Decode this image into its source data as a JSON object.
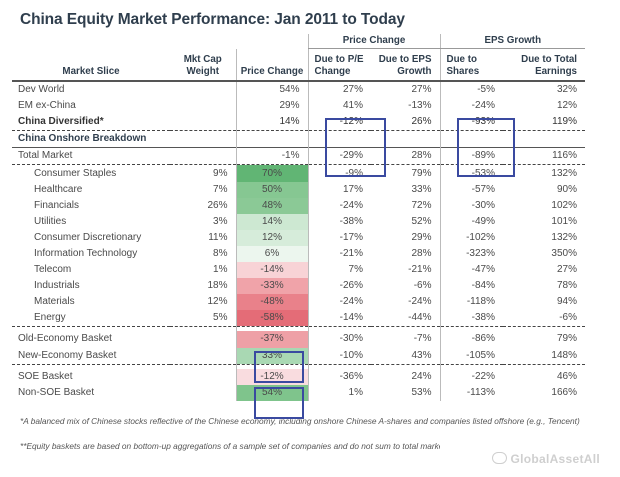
{
  "title": "China Equity Market Performance: Jan 2011 to Today",
  "groups": {
    "price_change": "Price Change",
    "eps_growth": "EPS Growth"
  },
  "columns": {
    "slice": "Market Slice",
    "mktcap": "Mkt Cap\nWeight",
    "price": "Price Change",
    "pe": "Due to P/E\nChange",
    "eps": "Due to EPS\nGrowth",
    "shares": "Due to\nShares",
    "earnings": "Due to Total\nEarnings"
  },
  "rows_top": [
    {
      "name": "Dev World",
      "mktcap": "",
      "price": "54%",
      "pe": "27%",
      "eps": "27%",
      "shares": "-5%",
      "earnings": "32%"
    },
    {
      "name": "EM ex-China",
      "mktcap": "",
      "price": "29%",
      "pe": "41%",
      "eps": "-13%",
      "shares": "-24%",
      "earnings": "12%"
    },
    {
      "name": "China Diversified*",
      "mktcap": "",
      "price": "14%",
      "pe": "-12%",
      "eps": "26%",
      "shares": "-93%",
      "earnings": "119%"
    }
  ],
  "section_label": "China Onshore Breakdown",
  "total_row": {
    "name": "Total Market",
    "mktcap": "",
    "price": "-1%",
    "pe": "-29%",
    "eps": "28%",
    "shares": "-89%",
    "earnings": "116%"
  },
  "sectors": [
    {
      "name": "Consumer Staples",
      "mktcap": "9%",
      "price": "70%",
      "pe": "-9%",
      "eps": "79%",
      "shares": "-53%",
      "earnings": "132%",
      "fill": "#61b574"
    },
    {
      "name": "Healthcare",
      "mktcap": "7%",
      "price": "50%",
      "pe": "17%",
      "eps": "33%",
      "shares": "-57%",
      "earnings": "90%",
      "fill": "#86c792"
    },
    {
      "name": "Financials",
      "mktcap": "26%",
      "price": "48%",
      "pe": "-24%",
      "eps": "72%",
      "shares": "-30%",
      "earnings": "102%",
      "fill": "#8bc996"
    },
    {
      "name": "Utilities",
      "mktcap": "3%",
      "price": "14%",
      "pe": "-38%",
      "eps": "52%",
      "shares": "-49%",
      "earnings": "101%",
      "fill": "#cde8d2"
    },
    {
      "name": "Consumer Discretionary",
      "mktcap": "11%",
      "price": "12%",
      "pe": "-17%",
      "eps": "29%",
      "shares": "-102%",
      "earnings": "132%",
      "fill": "#d6ecda"
    },
    {
      "name": "Information Technology",
      "mktcap": "8%",
      "price": "6%",
      "pe": "-21%",
      "eps": "28%",
      "shares": "-323%",
      "earnings": "350%",
      "fill": "#ecf6ee"
    },
    {
      "name": "Telecom",
      "mktcap": "1%",
      "price": "-14%",
      "pe": "7%",
      "eps": "-21%",
      "shares": "-47%",
      "earnings": "27%",
      "fill": "#f8d3d6"
    },
    {
      "name": "Industrials",
      "mktcap": "18%",
      "price": "-33%",
      "pe": "-26%",
      "eps": "-6%",
      "shares": "-84%",
      "earnings": "78%",
      "fill": "#f0a3a9"
    },
    {
      "name": "Materials",
      "mktcap": "12%",
      "price": "-48%",
      "pe": "-24%",
      "eps": "-24%",
      "shares": "-118%",
      "earnings": "94%",
      "fill": "#e9818a"
    },
    {
      "name": "Energy",
      "mktcap": "5%",
      "price": "-58%",
      "pe": "-14%",
      "eps": "-44%",
      "shares": "-38%",
      "earnings": "-6%",
      "fill": "#e46c77"
    }
  ],
  "baskets1": [
    {
      "name": "Old-Economy Basket",
      "price": "-37%",
      "pe": "-30%",
      "eps": "-7%",
      "shares": "-86%",
      "earnings": "79%",
      "fill": "#eea0a6"
    },
    {
      "name": "New-Economy Basket",
      "price": "33%",
      "pe": "-10%",
      "eps": "43%",
      "shares": "-105%",
      "earnings": "148%",
      "fill": "#a9d8b3"
    }
  ],
  "baskets2": [
    {
      "name": "SOE Basket",
      "price": "-12%",
      "pe": "-36%",
      "eps": "24%",
      "shares": "-22%",
      "earnings": "46%",
      "fill": "#f9dcdf"
    },
    {
      "name": "Non-SOE Basket",
      "price": "54%",
      "pe": "1%",
      "eps": "53%",
      "shares": "-113%",
      "earnings": "166%",
      "fill": "#7fc48c"
    }
  ],
  "footnotes": [
    "*A balanced mix of Chinese stocks reflective of the Chinese economy, including onshore Chinese A-shares and companies listed offshore (e.g., Tencent)",
    "**Equity baskets are based on bottom-up aggregations of a sample set of companies and do not sum to total market."
  ],
  "watermark": "GlobalAssetAll",
  "colors": {
    "title": "#2f3e4d",
    "highlight_box": "#3a4aa0"
  }
}
